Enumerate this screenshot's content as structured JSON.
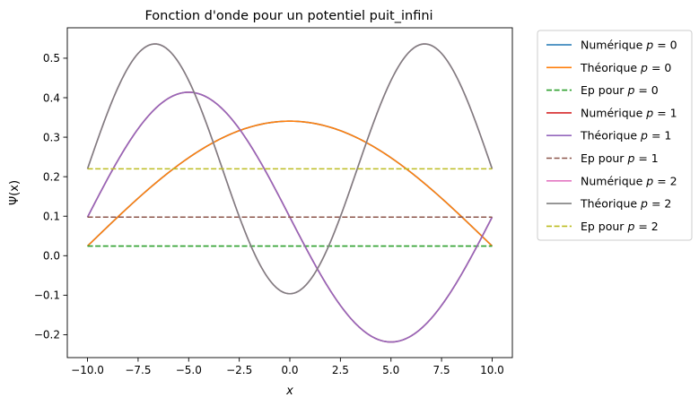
{
  "chart_data": {
    "type": "line",
    "title": "Fonction d'onde pour un potentiel puit_infini",
    "xlabel": "x",
    "ylabel": "Ψ(x)",
    "xlim": [
      -11.0,
      11.0
    ],
    "ylim": [
      -0.258,
      0.577
    ],
    "xticks": [
      -10.0,
      -7.5,
      -5.0,
      -2.5,
      0.0,
      2.5,
      5.0,
      7.5,
      10.0
    ],
    "xtick_labels": [
      "−10.0",
      "−7.5",
      "−5.0",
      "−2.5",
      "0.0",
      "2.5",
      "5.0",
      "7.5",
      "10.0"
    ],
    "yticks": [
      -0.2,
      -0.1,
      0.0,
      0.1,
      0.2,
      0.3,
      0.4,
      0.5
    ],
    "ytick_labels": [
      "−0.2",
      "−0.1",
      "0.0",
      "0.1",
      "0.2",
      "0.3",
      "0.4",
      "0.5"
    ],
    "x_range": [
      -10,
      10
    ],
    "samples": 201,
    "grid": false,
    "legend_position": "outside-right",
    "series": [
      {
        "name": "Numérique",
        "p": "0",
        "kind": "wave",
        "color": "#1f77b4",
        "style": "solid",
        "offset": 0.0244,
        "amplitude": 0.3162,
        "n": 1
      },
      {
        "name": "Théorique",
        "p": "0",
        "kind": "wave",
        "color": "#ff7f0e",
        "style": "solid",
        "offset": 0.0244,
        "amplitude": 0.3162,
        "n": 1
      },
      {
        "name": "Ep pour",
        "p": "0",
        "kind": "level",
        "color": "#2ca02c",
        "style": "dashed",
        "offset": 0.0244
      },
      {
        "name": "Numérique",
        "p": "1",
        "kind": "wave",
        "color": "#d62728",
        "style": "solid",
        "offset": 0.0977,
        "amplitude": 0.3162,
        "n": 2
      },
      {
        "name": "Théorique",
        "p": "1",
        "kind": "wave",
        "color": "#9467bd",
        "style": "solid",
        "offset": 0.0977,
        "amplitude": 0.3162,
        "n": 2
      },
      {
        "name": "Ep pour",
        "p": "1",
        "kind": "level",
        "color": "#8c564b",
        "style": "dashed",
        "offset": 0.0977
      },
      {
        "name": "Numérique",
        "p": "2",
        "kind": "wave",
        "color": "#e377c2",
        "style": "solid",
        "offset": 0.2199,
        "amplitude": 0.3162,
        "n": 3
      },
      {
        "name": "Théorique",
        "p": "2",
        "kind": "wave",
        "color": "#7f7f7f",
        "style": "solid",
        "offset": 0.2199,
        "amplitude": 0.3162,
        "n": 3
      },
      {
        "name": "Ep pour",
        "p": "2",
        "kind": "level",
        "color": "#bcbd22",
        "style": "dashed",
        "offset": 0.2199
      }
    ]
  }
}
